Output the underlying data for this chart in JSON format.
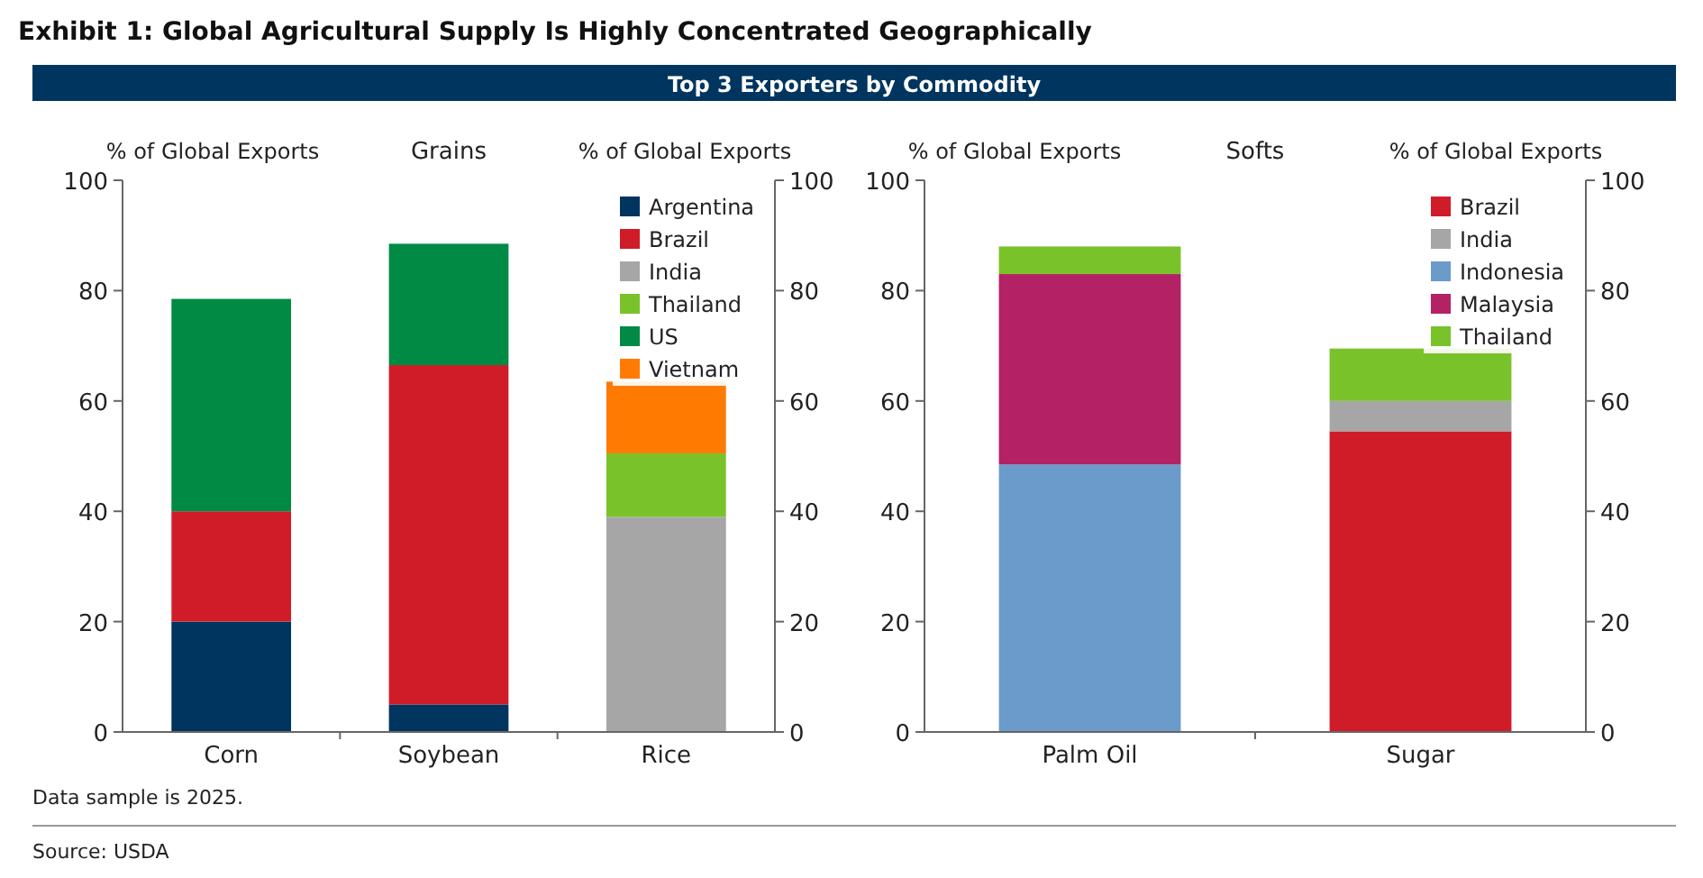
{
  "chart_data": [
    {
      "type": "bar",
      "title": "Grains",
      "ylabel": "% of Global Exports",
      "y2label": "% of Global Exports",
      "categories": [
        "Corn",
        "Soybean",
        "Rice"
      ],
      "stacked": true,
      "legend": "top right",
      "ylim": [
        0,
        100
      ],
      "yticks": [
        0,
        20,
        40,
        60,
        80,
        100
      ],
      "y2lim": [
        0,
        100
      ],
      "y2ticks": [
        0,
        20,
        40,
        60,
        80,
        100
      ],
      "annotations": [
        "Exhibit 1: Global Agricultural Supply Is Highly Concentrated Geographically",
        "Top 3 Exporters by Commodity",
        "Data sample is 2025.",
        "Source: USDA"
      ],
      "series": [
        {
          "name": "Argentina",
          "color": "#003560",
          "values": [
            20,
            5,
            null
          ]
        },
        {
          "name": "Brazil",
          "color": "#d01c29",
          "values": [
            20,
            61.5,
            null
          ]
        },
        {
          "name": "India",
          "color": "#a6a6a6",
          "values": [
            null,
            null,
            39
          ]
        },
        {
          "name": "Thailand",
          "color": "#7ac22a",
          "values": [
            null,
            null,
            11.5
          ]
        },
        {
          "name": "US",
          "color": "#008a44",
          "values": [
            38.5,
            22,
            null
          ]
        },
        {
          "name": "Vietnam",
          "color": "#ff7a00",
          "values": [
            null,
            null,
            13
          ]
        }
      ]
    },
    {
      "type": "bar",
      "title": "Softs",
      "ylabel": "% of Global Exports",
      "y2label": "% of Global Exports",
      "categories": [
        "Palm Oil",
        "Sugar"
      ],
      "stacked": true,
      "legend": "top right",
      "ylim": [
        0,
        100
      ],
      "yticks": [
        0,
        20,
        40,
        60,
        80,
        100
      ],
      "y2lim": [
        0,
        100
      ],
      "y2ticks": [
        0,
        20,
        40,
        60,
        80,
        100
      ],
      "series": [
        {
          "name": "Brazil",
          "color": "#d01c29",
          "values": [
            null,
            54.5
          ]
        },
        {
          "name": "India",
          "color": "#a6a6a6",
          "values": [
            null,
            5.5
          ]
        },
        {
          "name": "Indonesia",
          "color": "#6a9bca",
          "values": [
            48.5,
            null
          ]
        },
        {
          "name": "Malaysia",
          "color": "#b42266",
          "values": [
            34.5,
            null
          ]
        },
        {
          "name": "Thailand",
          "color": "#7ac22a",
          "values": [
            5,
            9.5
          ]
        }
      ]
    }
  ]
}
